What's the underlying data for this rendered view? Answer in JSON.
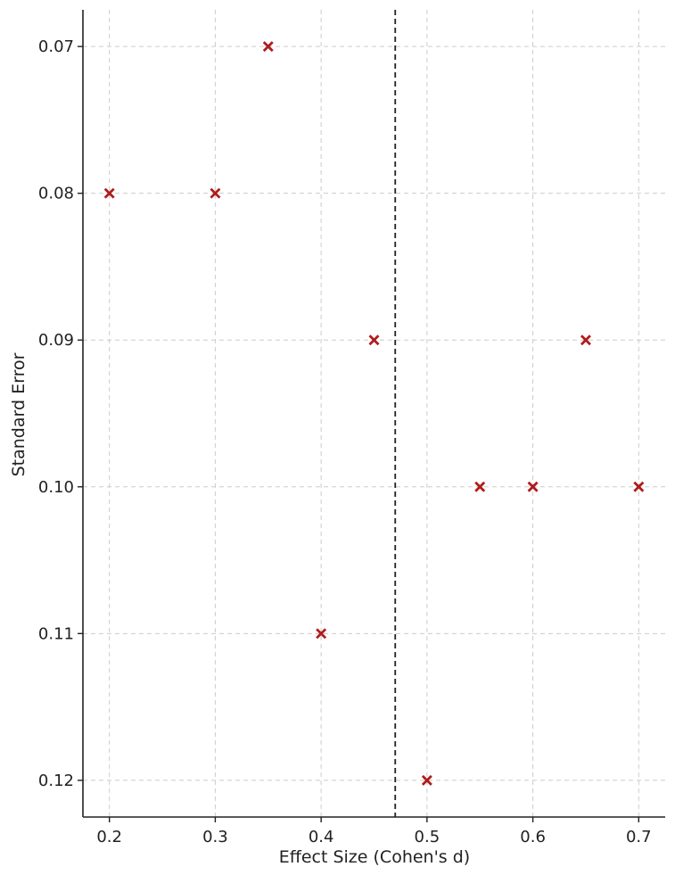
{
  "chart_data": {
    "type": "scatter",
    "title": "",
    "xlabel": "Effect Size (Cohen's d)",
    "ylabel": "Standard Error",
    "xlim": [
      0.175,
      0.725
    ],
    "ylim": [
      0.0675,
      0.1225
    ],
    "y_inverted": true,
    "x_ticks": [
      0.2,
      0.3,
      0.4,
      0.5,
      0.6,
      0.7
    ],
    "x_tick_labels": [
      "0.2",
      "0.3",
      "0.4",
      "0.5",
      "0.6",
      "0.7"
    ],
    "y_ticks": [
      0.07,
      0.08,
      0.09,
      0.1,
      0.11,
      0.12
    ],
    "y_tick_labels": [
      "0.07",
      "0.08",
      "0.09",
      "0.10",
      "0.11",
      "0.12"
    ],
    "grid": true,
    "reference_line_x": 0.47,
    "marker": "x",
    "marker_color": "#b01c1c",
    "points": [
      {
        "x": 0.2,
        "y": 0.08
      },
      {
        "x": 0.3,
        "y": 0.08
      },
      {
        "x": 0.35,
        "y": 0.07
      },
      {
        "x": 0.4,
        "y": 0.11
      },
      {
        "x": 0.45,
        "y": 0.09
      },
      {
        "x": 0.5,
        "y": 0.12
      },
      {
        "x": 0.55,
        "y": 0.1
      },
      {
        "x": 0.6,
        "y": 0.1
      },
      {
        "x": 0.65,
        "y": 0.09
      },
      {
        "x": 0.7,
        "y": 0.1
      }
    ]
  }
}
